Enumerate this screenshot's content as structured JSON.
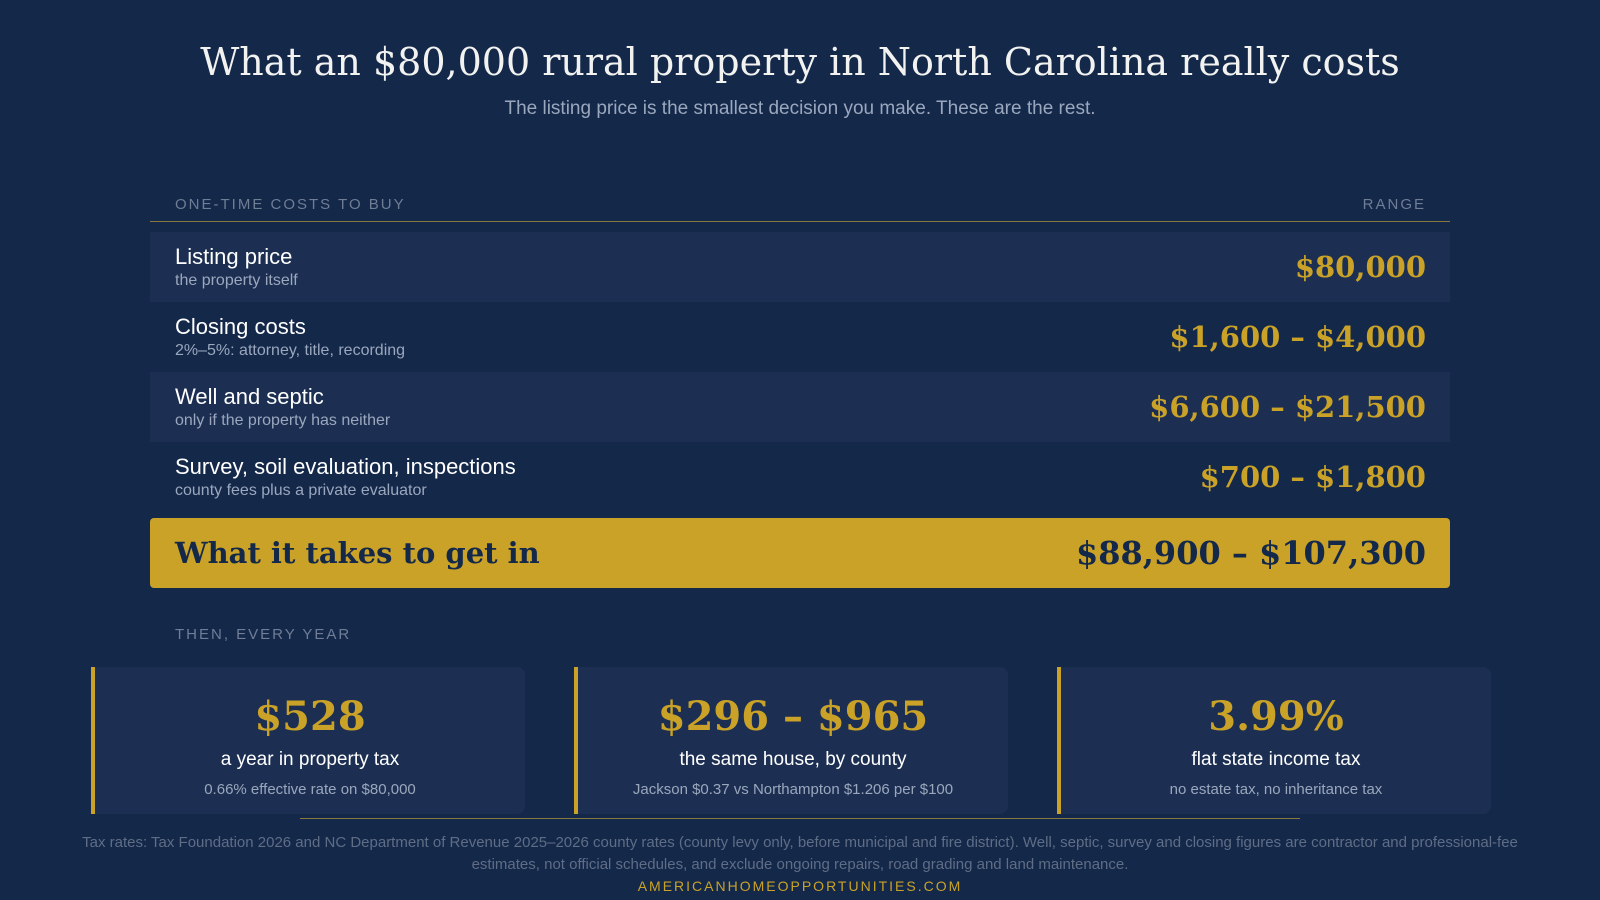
{
  "header": {
    "title": "What an $80,000 rural property in North Carolina really costs",
    "subtitle": "The listing price is the smallest decision you make. These are the rest."
  },
  "one_time": {
    "column_label": "ONE-TIME COSTS TO BUY",
    "range_label": "RANGE",
    "rows": [
      {
        "label": "Listing price",
        "note": "the property itself",
        "value": "$80,000"
      },
      {
        "label": "Closing costs",
        "note": "2%–5%: attorney, title, recording",
        "value": "$1,600 – $4,000"
      },
      {
        "label": "Well and septic",
        "note": "only if the property has neither",
        "value": "$6,600 – $21,500"
      },
      {
        "label": "Survey, soil evaluation, inspections",
        "note": "county fees plus a private evaluator",
        "value": "$700 – $1,800"
      }
    ],
    "total": {
      "label": "What it takes to get in",
      "value": "$88,900 – $107,300"
    }
  },
  "yearly": {
    "section_label": "THEN, EVERY YEAR",
    "cards": [
      {
        "value": "$528",
        "label": "a year in property tax",
        "note": "0.66% effective rate on $80,000"
      },
      {
        "value": "$296 – $965",
        "label": "the same house, by county",
        "note": "Jackson $0.37 vs Northampton $1.206 per $100"
      },
      {
        "value": "3.99%",
        "label": "flat state income tax",
        "note": "no estate tax, no inheritance tax"
      }
    ]
  },
  "footer": {
    "footnote": "Tax rates: Tax Foundation 2026 and NC Department of Revenue 2025–2026 county rates (county levy only, before municipal and fire district). Well, septic, survey and closing figures are contractor and professional-fee estimates, not official schedules, and exclude ongoing repairs, road grading and land maintenance.",
    "site": "AMERICANHOMEOPPORTUNITIES.COM"
  },
  "colors": {
    "background": "#14284a",
    "accent_gold": "#c9a227",
    "row_shade": "#1c2f52"
  }
}
